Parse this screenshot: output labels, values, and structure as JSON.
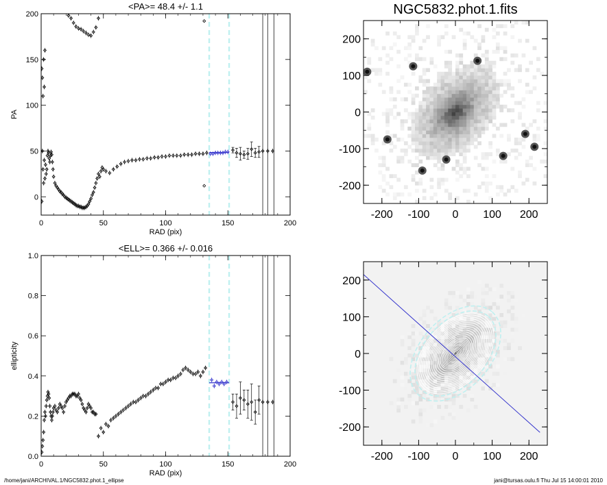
{
  "footer": {
    "left": "/home/jani/ARCHIVAL.1/NGC5832.phot.1_ellipse",
    "right": "jani@tursas.oulu.fi  Thu Jul 15 14:00:01 2010"
  },
  "colors": {
    "highlight": "#3333cc",
    "cyan": "#bff0f0",
    "axis": "#000000"
  },
  "chart_data": [
    {
      "id": "pa_panel",
      "type": "scatter",
      "title": "<PA>=  48.4 +/-   1.1",
      "xlabel": "RAD (pix)",
      "ylabel": "PA",
      "xlim": [
        0,
        200
      ],
      "ylim": [
        -20,
        200
      ],
      "xticks": [
        0,
        50,
        100,
        150,
        200
      ],
      "yticks": [
        0,
        50,
        100,
        150,
        200
      ],
      "vlines_dashed": [
        135,
        151
      ],
      "vlines_solid": [
        178,
        182,
        187
      ],
      "fit_value": 48.4,
      "fit_range": [
        135,
        151
      ],
      "series": [
        {
          "style": "inner_lower",
          "x": [
            0.5,
            1,
            1.5,
            2,
            2.5,
            3,
            3.5,
            4,
            4.5,
            5,
            5.5,
            6,
            6.5,
            7,
            7.5,
            8,
            8.5,
            9,
            9.5,
            10,
            11,
            12,
            13,
            14,
            15,
            16,
            17,
            18,
            19,
            20,
            21,
            22,
            23,
            24,
            25,
            26,
            27,
            28,
            29,
            30,
            31,
            32,
            33,
            34,
            35,
            36,
            37,
            38,
            39,
            40,
            41,
            42,
            43,
            44,
            45,
            46,
            47,
            48,
            49,
            50
          ],
          "y": [
            -5,
            50,
            30,
            15,
            40,
            20,
            35,
            25,
            30,
            45,
            50,
            48,
            42,
            38,
            45,
            49,
            46,
            38,
            30,
            22,
            15,
            12,
            10,
            8,
            6,
            5,
            3,
            2,
            0,
            -1,
            -2,
            -3,
            -4,
            -5,
            -6,
            -7,
            -8,
            -9,
            -10,
            -10,
            -11,
            -11,
            -12,
            -12,
            -12,
            -11,
            -10,
            -8,
            -5,
            -2,
            2,
            5,
            10,
            15,
            20,
            25,
            22,
            28,
            32,
            30
          ]
        },
        {
          "style": "inner_upper",
          "x": [
            0.5,
            1,
            1.5,
            2,
            2.5,
            3,
            20,
            22,
            24,
            26,
            28,
            30,
            32,
            34,
            36,
            38,
            40,
            42,
            44,
            46
          ],
          "y": [
            140,
            130,
            110,
            150,
            120,
            160,
            205,
            198,
            195,
            190,
            186,
            184,
            183,
            181,
            179,
            177,
            176,
            180,
            185,
            195
          ]
        },
        {
          "style": "main",
          "x": [
            52,
            55,
            58,
            61,
            64,
            67,
            70,
            73,
            76,
            79,
            82,
            85,
            88,
            91,
            94,
            97,
            100,
            103,
            106,
            109,
            112,
            115,
            118,
            121,
            124,
            127,
            130,
            133
          ],
          "y": [
            28,
            26,
            30,
            33,
            36,
            38,
            39,
            40,
            40,
            41,
            41,
            42,
            42,
            43,
            43,
            44,
            44,
            45,
            45,
            45,
            45,
            46,
            46,
            46,
            47,
            47,
            47,
            48
          ]
        },
        {
          "style": "outliers",
          "x": [
            131,
            131
          ],
          "y": [
            192,
            12
          ]
        },
        {
          "style": "fit",
          "x": [
            136,
            138,
            140,
            142,
            144,
            146,
            148,
            150
          ],
          "y": [
            47,
            47,
            48,
            48,
            48,
            48,
            49,
            49
          ]
        },
        {
          "style": "outer",
          "x": [
            154,
            157,
            160,
            163,
            166,
            169,
            172,
            175,
            178,
            182,
            186
          ],
          "y": [
            51,
            48,
            47,
            46,
            47,
            52,
            48,
            49,
            50,
            50,
            50
          ],
          "err": [
            3,
            5,
            7,
            4,
            6,
            8,
            5,
            6,
            0,
            0,
            0
          ]
        }
      ]
    },
    {
      "id": "ell_panel",
      "type": "scatter",
      "title": "<ELL>= 0.366 +/-  0.016",
      "xlabel": "RAD (pix)",
      "ylabel": "ellipticity",
      "xlim": [
        0,
        200
      ],
      "ylim": [
        0,
        1.0
      ],
      "xticks": [
        0,
        50,
        100,
        150,
        200
      ],
      "yticks": [
        0.0,
        0.2,
        0.4,
        0.6,
        0.8,
        1.0
      ],
      "vlines_dashed": [
        135,
        151
      ],
      "vlines_solid": [
        178,
        182,
        187
      ],
      "fit_value": 0.366,
      "fit_range": [
        135,
        151
      ],
      "series": [
        {
          "style": "inner",
          "x": [
            0.5,
            1,
            1.5,
            2,
            2.5,
            3,
            3.5,
            4,
            4.5,
            5,
            5.5,
            6,
            6.5,
            7,
            7.5,
            8,
            8.5,
            9,
            9.5,
            10,
            11,
            12,
            13,
            14,
            15,
            16,
            17,
            18,
            19,
            20,
            21,
            22,
            23,
            24,
            25,
            26,
            27,
            28,
            29,
            30,
            31,
            32,
            33,
            34,
            35,
            36,
            37,
            38,
            39,
            40,
            41,
            42,
            43,
            44
          ],
          "y": [
            0.02,
            0.05,
            0.08,
            0.12,
            0.18,
            0.22,
            0.2,
            0.25,
            0.28,
            0.3,
            0.32,
            0.31,
            0.29,
            0.25,
            0.22,
            0.2,
            0.18,
            0.2,
            0.22,
            0.24,
            0.25,
            0.23,
            0.22,
            0.24,
            0.26,
            0.25,
            0.24,
            0.22,
            0.25,
            0.27,
            0.28,
            0.29,
            0.3,
            0.3,
            0.31,
            0.31,
            0.31,
            0.3,
            0.3,
            0.31,
            0.29,
            0.28,
            0.26,
            0.24,
            0.23,
            0.22,
            0.24,
            0.26,
            0.25,
            0.24,
            0.22,
            0.22,
            0.21,
            0.21
          ]
        },
        {
          "style": "main",
          "x": [
            46,
            48,
            50,
            52,
            54,
            56,
            58,
            60,
            62,
            64,
            66,
            68,
            70,
            72,
            74,
            76,
            78,
            80,
            82,
            84,
            86,
            88,
            90,
            92,
            94,
            96,
            98,
            100,
            102,
            104,
            106,
            108,
            110,
            112,
            114,
            116,
            118,
            120,
            122,
            124,
            126,
            128,
            130,
            132
          ],
          "y": [
            0.1,
            0.14,
            0.12,
            0.16,
            0.15,
            0.18,
            0.19,
            0.2,
            0.21,
            0.22,
            0.23,
            0.24,
            0.25,
            0.26,
            0.27,
            0.27,
            0.28,
            0.29,
            0.3,
            0.3,
            0.31,
            0.32,
            0.33,
            0.34,
            0.34,
            0.36,
            0.36,
            0.37,
            0.38,
            0.38,
            0.39,
            0.39,
            0.4,
            0.41,
            0.43,
            0.44,
            0.43,
            0.42,
            0.41,
            0.41,
            0.42,
            0.4,
            0.42,
            0.44
          ]
        },
        {
          "style": "fit",
          "x": [
            137,
            139,
            141,
            143,
            145,
            147,
            149
          ],
          "y": [
            0.38,
            0.35,
            0.37,
            0.36,
            0.37,
            0.36,
            0.37
          ]
        },
        {
          "style": "outer",
          "x": [
            154,
            157,
            160,
            163,
            166,
            169,
            172,
            175,
            178,
            182,
            186
          ],
          "y": [
            0.27,
            0.25,
            0.29,
            0.28,
            0.26,
            0.27,
            0.22,
            0.28,
            0.27,
            0.27,
            0.27
          ],
          "err": [
            0.04,
            0.06,
            0.08,
            0.05,
            0.07,
            0.09,
            0.06,
            0.07,
            0,
            0,
            0
          ]
        }
      ]
    },
    {
      "id": "image_panel",
      "type": "heatmap",
      "title": "NGC5832.phot.1.fits",
      "xlim": [
        -250,
        250
      ],
      "ylim": [
        -250,
        250
      ],
      "xticks": [
        -200,
        -100,
        0,
        100,
        200
      ],
      "yticks": [
        -200,
        -100,
        0,
        100,
        200
      ],
      "galaxy": {
        "center": [
          0,
          0
        ],
        "pa_deg": 48.4,
        "ell": 0.366
      },
      "stars": [
        [
          -240,
          110
        ],
        [
          -115,
          125
        ],
        [
          -185,
          -75
        ],
        [
          -25,
          -130
        ],
        [
          215,
          -95
        ],
        [
          190,
          -60
        ],
        [
          60,
          140
        ],
        [
          -90,
          -160
        ],
        [
          130,
          -120
        ]
      ]
    },
    {
      "id": "model_panel",
      "type": "heatmap",
      "title": "",
      "xlim": [
        -250,
        250
      ],
      "ylim": [
        -250,
        250
      ],
      "xticks": [
        -200,
        -100,
        0,
        100,
        200
      ],
      "yticks": [
        -200,
        -100,
        0,
        100,
        200
      ],
      "galaxy": {
        "center": [
          0,
          0
        ],
        "pa_deg": 48.4,
        "ell": 0.366
      },
      "contour_radii": [
        6,
        10,
        14,
        18,
        22,
        26,
        30,
        34,
        38,
        42,
        46,
        50,
        56,
        62,
        68,
        74,
        80,
        86,
        92,
        98,
        104,
        110,
        116,
        122,
        128
      ],
      "fit_ellipse_radii": [
        135,
        151
      ],
      "pa_line": [
        [
          -250,
          215
        ],
        [
          230,
          -215
        ]
      ]
    }
  ]
}
